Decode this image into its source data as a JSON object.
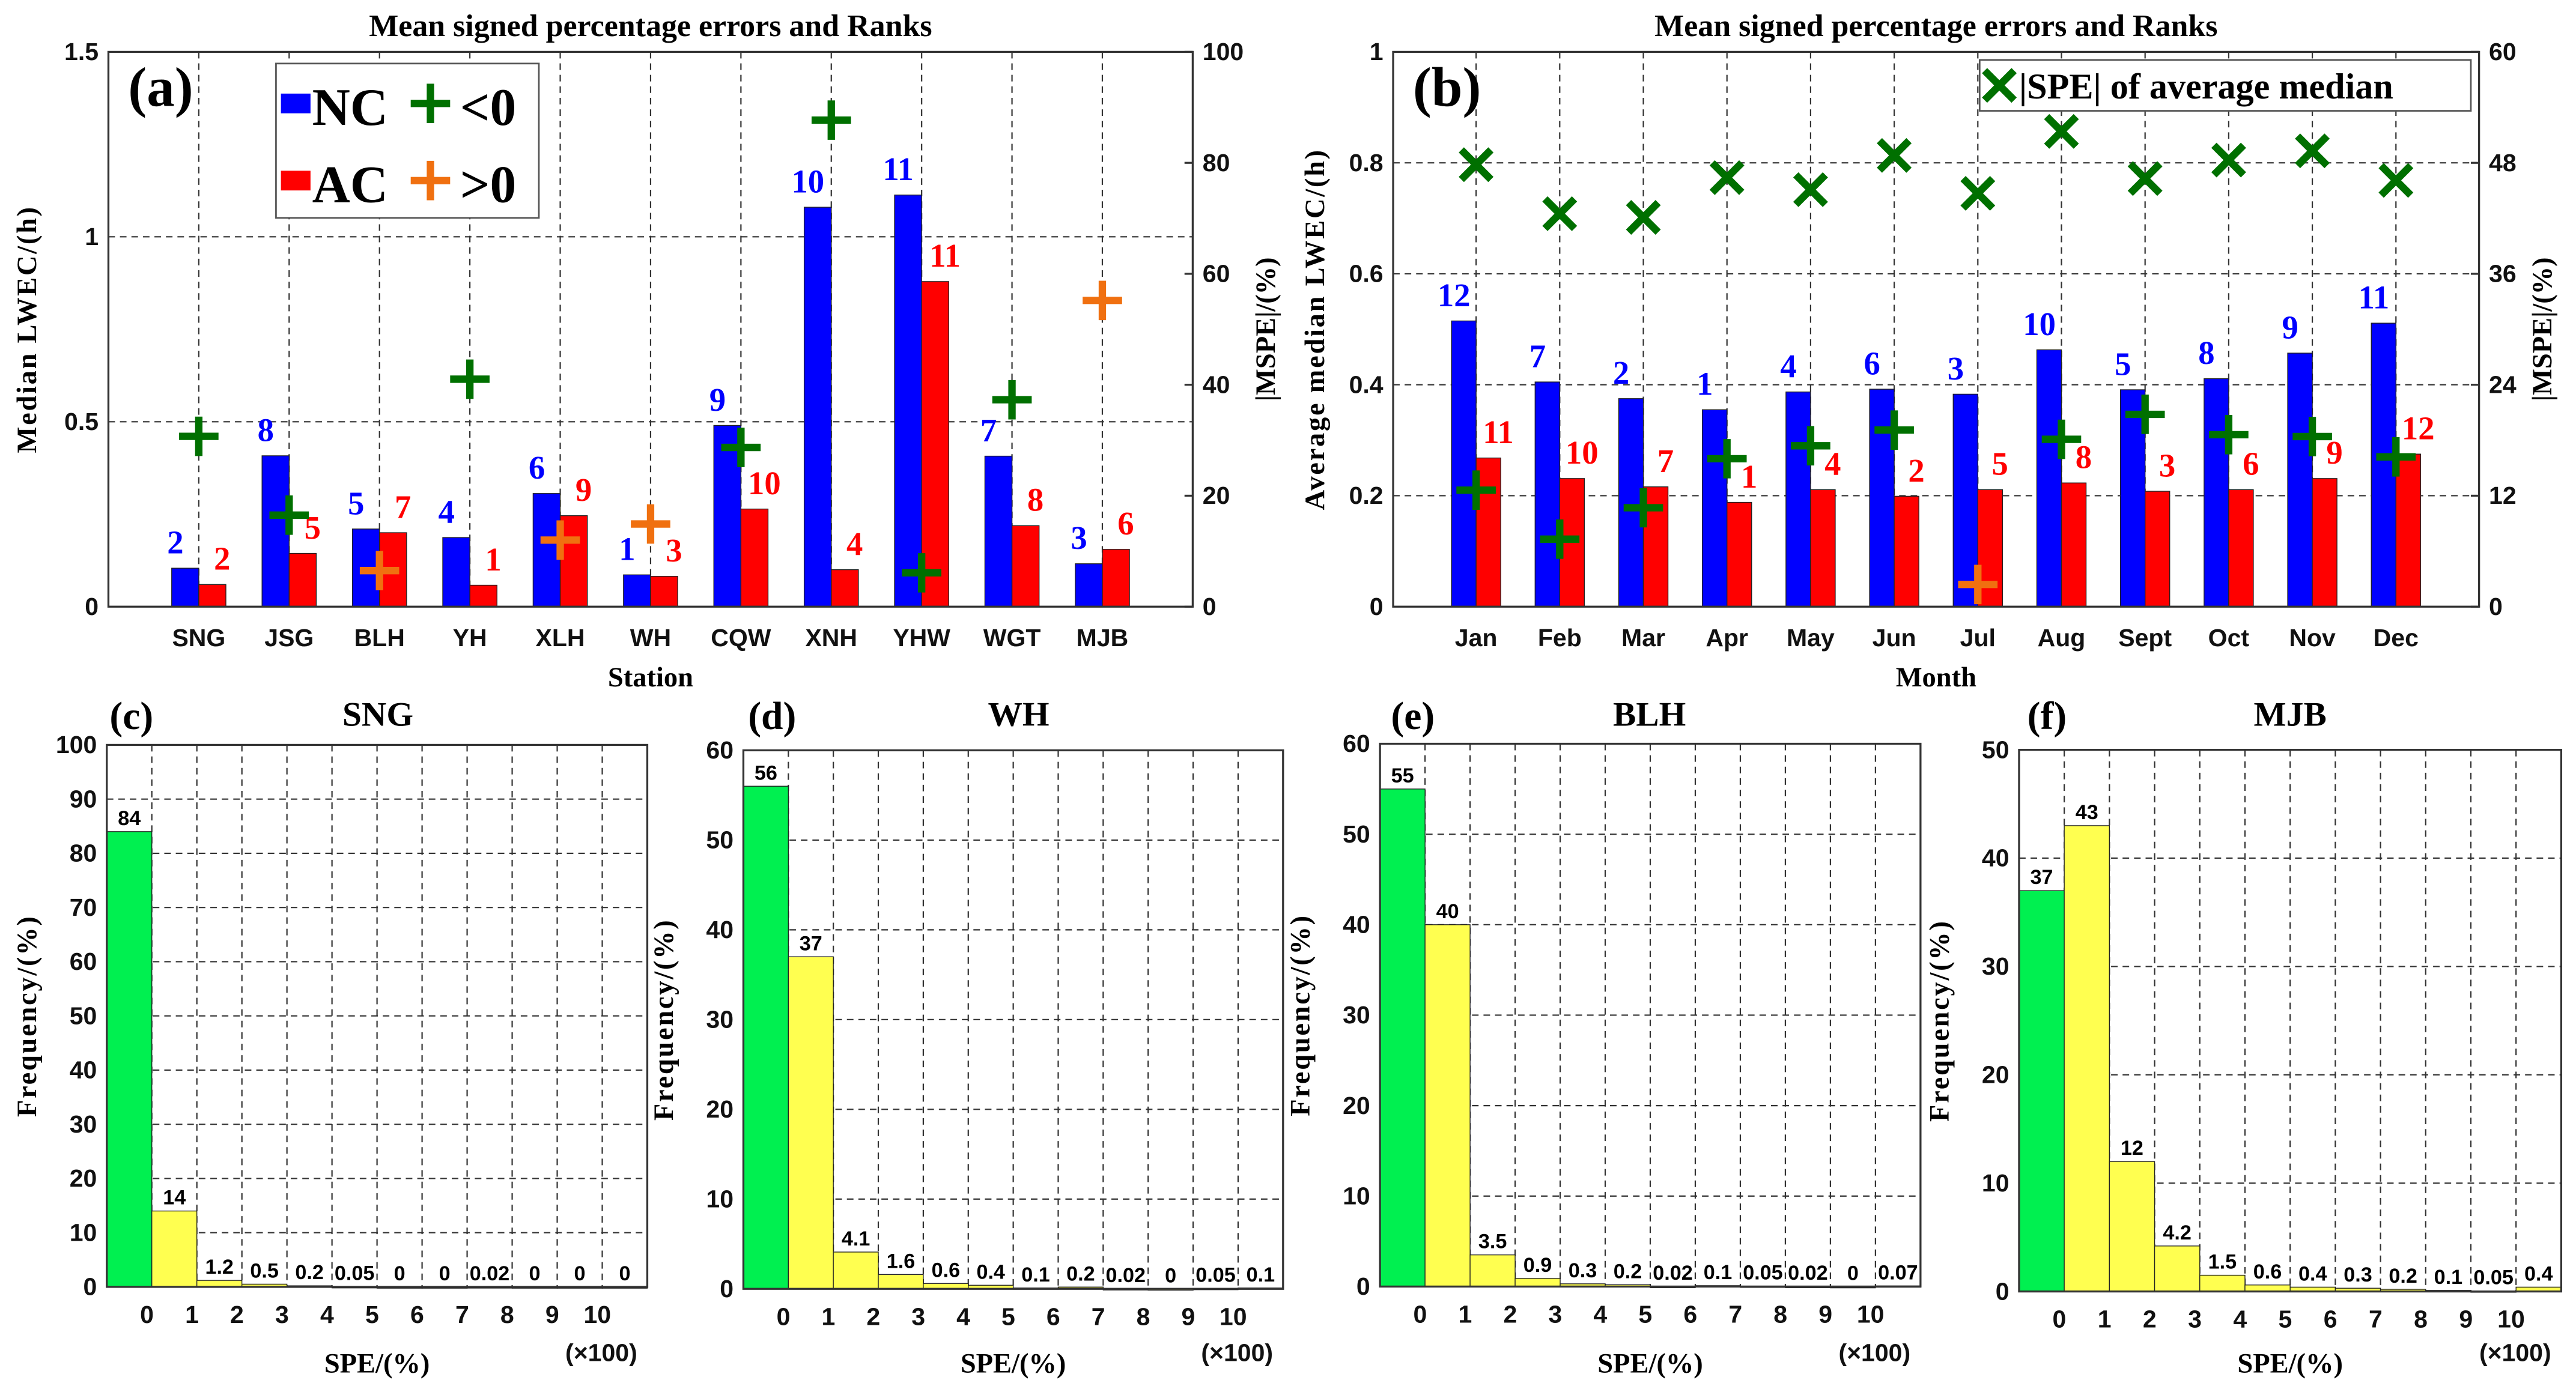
{
  "chart_data": [
    {
      "id": "a",
      "type": "bar",
      "panel_label": "(a)",
      "title": "Mean signed percentage errors and Ranks",
      "xlabel": "Station",
      "ylabel": "Median LWEC/(h)",
      "y2label": "|MSPE|/(%)",
      "ylim": [
        0,
        1.5
      ],
      "yticks": [
        "0",
        "0.5",
        "1",
        "1.5"
      ],
      "y2lim": [
        0,
        100
      ],
      "y2ticks": [
        "0",
        "20",
        "40",
        "60",
        "80",
        "100"
      ],
      "grid": true,
      "categories": [
        "SNG",
        "JSG",
        "BLH",
        "YH",
        "XLH",
        "WH",
        "CQW",
        "XNH",
        "YHW",
        "WGT",
        "MJB"
      ],
      "series": [
        {
          "name": "NC",
          "color": "#0000ff",
          "values": [
            0.104,
            0.408,
            0.21,
            0.187,
            0.306,
            0.086,
            0.49,
            1.08,
            1.113,
            0.407,
            0.116
          ],
          "ranks": [
            "2",
            "8",
            "5",
            "4",
            "6",
            "1",
            "9",
            "10",
            "11",
            "7",
            "3"
          ]
        },
        {
          "name": "AC",
          "color": "#ff0000",
          "values": [
            0.06,
            0.144,
            0.2,
            0.058,
            0.246,
            0.082,
            0.264,
            0.1,
            0.879,
            0.219,
            0.155
          ],
          "ranks": [
            "2",
            "5",
            "7",
            "1",
            "9",
            "3",
            "10",
            "4",
            "11",
            "8",
            "6"
          ]
        }
      ],
      "mspe_signed": [
        -30.7,
        -16.5,
        6.5,
        -41,
        12,
        14.9,
        -28.7,
        -87.7,
        -6.1,
        -37.3,
        55.2
      ],
      "mspe_colors": {
        "negative": "#007000",
        "positive": "#f07010"
      },
      "legend": {
        "position": "top-left",
        "nc": "NC",
        "neg": "<0",
        "ac": "AC",
        "pos": ">0"
      }
    },
    {
      "id": "b",
      "type": "bar",
      "panel_label": "(b)",
      "title": "Mean signed percentage errors and Ranks",
      "xlabel": "Month",
      "ylabel": "Average median LWEC/(h)",
      "y2label": "|MSPE|/(%)",
      "ylim": [
        0,
        1
      ],
      "yticks": [
        "0",
        "0.2",
        "0.4",
        "0.6",
        "0.8",
        "1"
      ],
      "y2lim": [
        0,
        60
      ],
      "y2ticks": [
        "0",
        "12",
        "24",
        "36",
        "48",
        "60"
      ],
      "grid": true,
      "categories": [
        "Jan",
        "Feb",
        "Mar",
        "Apr",
        "May",
        "Jun",
        "Jul",
        "Aug",
        "Sept",
        "Oct",
        "Nov",
        "Dec"
      ],
      "series": [
        {
          "name": "NC",
          "color": "#0000ff",
          "values": [
            0.515,
            0.405,
            0.375,
            0.355,
            0.387,
            0.392,
            0.383,
            0.463,
            0.391,
            0.411,
            0.457,
            0.511
          ],
          "ranks": [
            "12",
            "7",
            "2",
            "1",
            "4",
            "6",
            "3",
            "10",
            "5",
            "8",
            "9",
            "11"
          ]
        },
        {
          "name": "AC",
          "color": "#ff0000",
          "values": [
            0.268,
            0.231,
            0.216,
            0.188,
            0.211,
            0.199,
            0.211,
            0.223,
            0.208,
            0.211,
            0.231,
            0.275
          ],
          "ranks": [
            "11",
            "10",
            "7",
            "1",
            "4",
            "2",
            "5",
            "8",
            "3",
            "6",
            "9",
            "12"
          ]
        }
      ],
      "mspe_signed": [
        -12.6,
        -7.3,
        -10.7,
        -16.0,
        -17.4,
        -19.1,
        2.4,
        -18.1,
        -20.8,
        -18.6,
        -18.4,
        -16.2
      ],
      "mspe_colors": {
        "negative": "#007000",
        "positive": "#f07010"
      },
      "spe_average_median": [
        47.8,
        42.5,
        42.1,
        46.4,
        45.1,
        48.8,
        44.7,
        51.4,
        46.3,
        48.3,
        49.3,
        46.1
      ],
      "legend": {
        "position": "top-right",
        "spe": "|SPE| of average median"
      }
    },
    {
      "id": "c",
      "type": "bar",
      "panel_label": "(c)",
      "title": "SNG",
      "xlabel": "SPE/(%)",
      "xunit": "(×100)",
      "ylabel": "Frequency/(%)",
      "ylim": [
        0,
        100
      ],
      "ystep": 10,
      "xticks": [
        "0",
        "1",
        "2",
        "3",
        "4",
        "5",
        "6",
        "7",
        "8",
        "9",
        "10"
      ],
      "values": [
        84,
        14,
        1.2,
        0.5,
        0.2,
        0.05,
        0,
        0,
        0.02,
        0,
        0,
        0
      ],
      "labels": [
        "84",
        "14",
        "1.2",
        "0.5",
        "0.2",
        "0.05",
        "0",
        "0",
        "0.02",
        "0",
        "0",
        "0"
      ],
      "first_color": "#00f050",
      "rest_color": "#ffff50"
    },
    {
      "id": "d",
      "type": "bar",
      "panel_label": "(d)",
      "title": "WH",
      "xlabel": "SPE/(%)",
      "xunit": "(×100)",
      "ylabel": "Frequency/(%)",
      "ylim": [
        0,
        60
      ],
      "ystep": 10,
      "xticks": [
        "0",
        "1",
        "2",
        "3",
        "4",
        "5",
        "6",
        "7",
        "8",
        "9",
        "10"
      ],
      "values": [
        56,
        37,
        4.1,
        1.6,
        0.6,
        0.4,
        0.1,
        0.2,
        0.02,
        0,
        0.05,
        0.1
      ],
      "labels": [
        "56",
        "37",
        "4.1",
        "1.6",
        "0.6",
        "0.4",
        "0.1",
        "0.2",
        "0.02",
        "0",
        "0.05",
        "0.1"
      ],
      "first_color": "#00f050",
      "rest_color": "#ffff50"
    },
    {
      "id": "e",
      "type": "bar",
      "panel_label": "(e)",
      "title": "BLH",
      "xlabel": "SPE/(%)",
      "xunit": "(×100)",
      "ylabel": "Frequency/(%)",
      "ylim": [
        0,
        60
      ],
      "ystep": 10,
      "xticks": [
        "0",
        "1",
        "2",
        "3",
        "4",
        "5",
        "6",
        "7",
        "8",
        "9",
        "10"
      ],
      "values": [
        55,
        40,
        3.5,
        0.9,
        0.3,
        0.2,
        0.02,
        0.1,
        0.05,
        0.02,
        0,
        0.07
      ],
      "labels": [
        "55",
        "40",
        "3.5",
        "0.9",
        "0.3",
        "0.2",
        "0.02",
        "0.1",
        "0.05",
        "0.02",
        "0",
        "0.07"
      ],
      "first_color": "#00f050",
      "rest_color": "#ffff50"
    },
    {
      "id": "f",
      "type": "bar",
      "panel_label": "(f)",
      "title": "MJB",
      "xlabel": "SPE/(%)",
      "xunit": "(×100)",
      "ylabel": "Frequency/(%)",
      "ylim": [
        0,
        50
      ],
      "ystep": 10,
      "xticks": [
        "0",
        "1",
        "2",
        "3",
        "4",
        "5",
        "6",
        "7",
        "8",
        "9",
        "10"
      ],
      "values": [
        37,
        43,
        12,
        4.2,
        1.5,
        0.6,
        0.4,
        0.3,
        0.2,
        0.1,
        0.05,
        0.4
      ],
      "labels": [
        "37",
        "43",
        "12",
        "4.2",
        "1.5",
        "0.6",
        "0.4",
        "0.3",
        "0.2",
        "0.1",
        "0.05",
        "0.4"
      ],
      "first_color": "#00f050",
      "rest_color": "#ffff50"
    }
  ]
}
